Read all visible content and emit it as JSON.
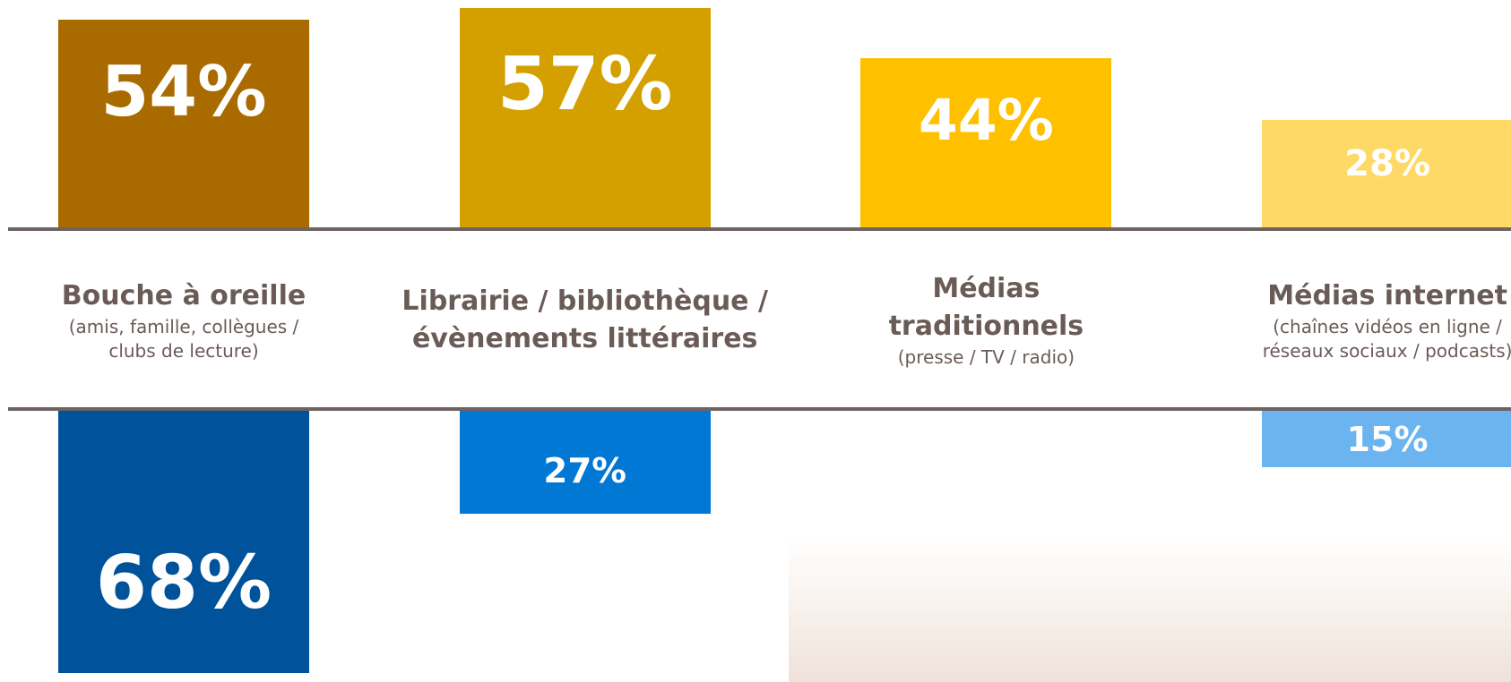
{
  "chart_data": {
    "type": "diverging-bar",
    "categories": [
      "Bouche à oreille",
      "Librairie / bibliothèque / évènements littéraires",
      "Médias traditionnels",
      "Médias internet"
    ],
    "category_details": [
      "(amis, famille, collègues / clubs de lecture)",
      null,
      "(presse / TV / radio)",
      "(chaînes vidéos en ligne / réseaux sociaux / podcasts)"
    ],
    "series": [
      {
        "direction": "up",
        "colors": [
          "#a96b00",
          "#d4a000",
          "#ffc000",
          "#ffd966"
        ],
        "values": [
          54,
          57,
          44,
          28
        ],
        "value_labels": [
          "54%",
          "57%",
          "44%",
          "28%"
        ]
      },
      {
        "direction": "down",
        "colors": [
          "#00529b",
          "#0078d4",
          null,
          "#6cb4f0"
        ],
        "values": [
          68,
          27,
          null,
          15
        ],
        "value_labels": [
          "68%",
          "27%",
          null,
          "15%"
        ]
      }
    ]
  }
}
